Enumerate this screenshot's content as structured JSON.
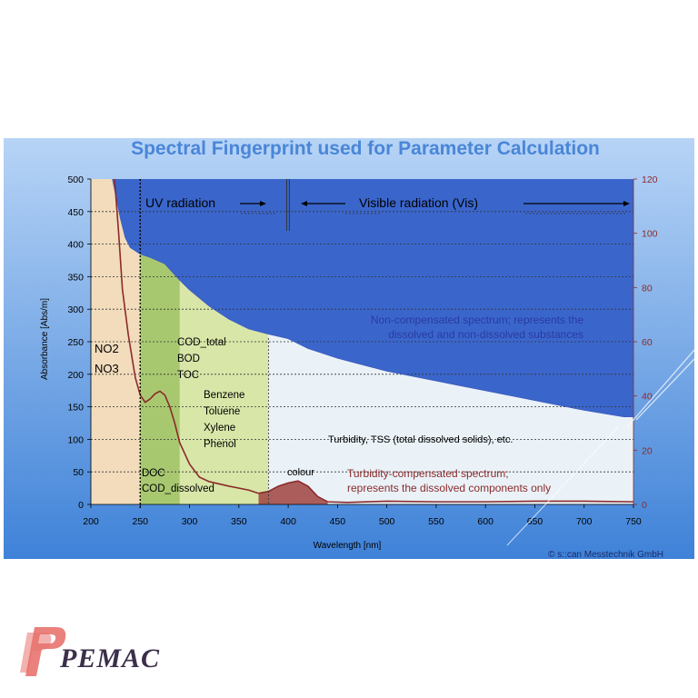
{
  "chart_data": {
    "type": "area",
    "title": "Spectral Fingerprint used for Parameter Calculation",
    "xlabel": "Wavelength [nm]",
    "ylabel": "Absorbance [Abs/m]",
    "xlim": [
      200,
      750
    ],
    "ylim": [
      0,
      500
    ],
    "y2lim": [
      0,
      120
    ],
    "x_ticks": [
      "200",
      "250",
      "300",
      "350",
      "400",
      "450",
      "500",
      "550",
      "600",
      "650",
      "700",
      "750"
    ],
    "y_ticks": [
      "0",
      "50",
      "100",
      "150",
      "200",
      "250",
      "300",
      "350",
      "400",
      "450",
      "500"
    ],
    "y2_ticks": [
      "0",
      "20",
      "40",
      "60",
      "80",
      "100",
      "120"
    ],
    "grid": "dotted horizontal",
    "series": [
      {
        "name": "Non-compensated spectrum; represents the dissolved and non-dissolved substances",
        "color": "#3f5fc0",
        "points": [
          [
            222,
            500
          ],
          [
            230,
            440
          ],
          [
            235,
            410
          ],
          [
            240,
            395
          ],
          [
            250,
            385
          ],
          [
            260,
            380
          ],
          [
            275,
            370
          ],
          [
            290,
            345
          ],
          [
            300,
            330
          ],
          [
            320,
            305
          ],
          [
            340,
            285
          ],
          [
            360,
            270
          ],
          [
            380,
            262
          ],
          [
            400,
            255
          ],
          [
            420,
            240
          ],
          [
            450,
            225
          ],
          [
            500,
            205
          ],
          [
            550,
            190
          ],
          [
            600,
            175
          ],
          [
            650,
            160
          ],
          [
            700,
            145
          ],
          [
            740,
            135
          ],
          [
            750,
            135
          ]
        ]
      },
      {
        "name": "Turbidity-compensated spectrum; represents the dissolved components only",
        "color": "#8b2a2a",
        "points": [
          [
            224,
            500
          ],
          [
            228,
            420
          ],
          [
            232,
            330
          ],
          [
            238,
            260
          ],
          [
            245,
            195
          ],
          [
            250,
            168
          ],
          [
            255,
            157
          ],
          [
            260,
            162
          ],
          [
            265,
            170
          ],
          [
            270,
            174
          ],
          [
            275,
            168
          ],
          [
            280,
            150
          ],
          [
            285,
            125
          ],
          [
            290,
            95
          ],
          [
            300,
            62
          ],
          [
            310,
            42
          ],
          [
            320,
            35
          ],
          [
            340,
            28
          ],
          [
            360,
            22
          ],
          [
            370,
            17
          ],
          [
            380,
            20
          ],
          [
            390,
            28
          ],
          [
            400,
            33
          ],
          [
            410,
            36
          ],
          [
            420,
            28
          ],
          [
            430,
            12
          ],
          [
            440,
            4
          ],
          [
            460,
            3
          ],
          [
            500,
            5
          ],
          [
            550,
            4
          ],
          [
            600,
            4
          ],
          [
            650,
            5
          ],
          [
            700,
            5
          ],
          [
            750,
            4
          ]
        ]
      }
    ],
    "regions": [
      {
        "name": "NO2/NO3 region",
        "x": [
          200,
          250
        ],
        "color": "#f2dcbc"
      },
      {
        "name": "UV organics region",
        "x": [
          250,
          380
        ],
        "color": "#d8e6a8"
      },
      {
        "name": "Dissolved organics sub-region",
        "x": [
          250,
          290
        ],
        "color": "#a8c870"
      }
    ],
    "annotations": {
      "uv": "UV radiation",
      "vis": "Visible radiation (Vis)",
      "no2": "NO2",
      "no3": "NO3",
      "cod_total": "COD_total",
      "bod": "BOD",
      "toc": "TOC",
      "benzene": "Benzene",
      "toluene": "Toluene",
      "xylene": "Xylene",
      "phenol": "Phenol",
      "doc": "DOC",
      "cod_dissolved": "COD_dissolved",
      "colour": "colour",
      "turbidity": "Turbidity, TSS (total dissolved solids), etc.",
      "noncomp_1": "Non-compensated spectrum; represents the",
      "noncomp_2": "dissolved and non-dissolved substances",
      "comp_1": "Turbidity-compensated spectrum;",
      "comp_2": "represents the dissolved components only"
    },
    "credit": "© s::can Messtechnik GmbH"
  },
  "logo": {
    "text": "PEMAC"
  },
  "colors": {
    "panel_top": "#aecdf4",
    "panel_bottom": "#3b7fd6",
    "title": "#4a86d8",
    "noncomp_fill": "#3a66cc",
    "plot_bg": "#eaf2f8",
    "right_axis": "#8b2a2a",
    "annotation_blue": "#2a3aa0",
    "annotation_red": "#8b2a2a"
  }
}
